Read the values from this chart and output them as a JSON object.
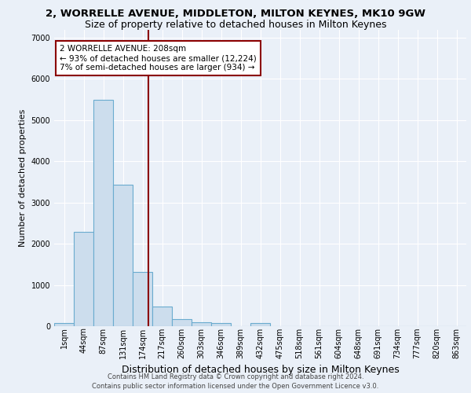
{
  "title": "2, WORRELLE AVENUE, MIDDLETON, MILTON KEYNES, MK10 9GW",
  "subtitle": "Size of property relative to detached houses in Milton Keynes",
  "xlabel": "Distribution of detached houses by size in Milton Keynes",
  "ylabel": "Number of detached properties",
  "bin_labels": [
    "1sqm",
    "44sqm",
    "87sqm",
    "131sqm",
    "174sqm",
    "217sqm",
    "260sqm",
    "303sqm",
    "346sqm",
    "389sqm",
    "432sqm",
    "475sqm",
    "518sqm",
    "561sqm",
    "604sqm",
    "648sqm",
    "691sqm",
    "734sqm",
    "777sqm",
    "820sqm",
    "863sqm"
  ],
  "bar_heights": [
    80,
    2280,
    5500,
    3440,
    1310,
    470,
    170,
    100,
    80,
    0,
    80,
    0,
    0,
    0,
    0,
    0,
    0,
    0,
    0,
    0,
    0
  ],
  "bar_color": "#ccdded",
  "bar_edgecolor": "#6aabcf",
  "bar_linewidth": 0.8,
  "vline_x": 4.79,
  "vline_color": "#8B0000",
  "vline_linewidth": 1.5,
  "annotation_text": "2 WORRELLE AVENUE: 208sqm\n← 93% of detached houses are smaller (12,224)\n7% of semi-detached houses are larger (934) →",
  "annotation_box_color": "white",
  "annotation_box_edgecolor": "#8B0000",
  "ylim": [
    0,
    7200
  ],
  "yticks": [
    0,
    1000,
    2000,
    3000,
    4000,
    5000,
    6000,
    7000
  ],
  "footer": "Contains HM Land Registry data © Crown copyright and database right 2024.\nContains public sector information licensed under the Open Government Licence v3.0.",
  "bg_color": "#eaf0f8",
  "grid_color": "white",
  "title_fontsize": 9.5,
  "subtitle_fontsize": 9,
  "xlabel_fontsize": 9,
  "ylabel_fontsize": 8,
  "tick_fontsize": 7,
  "annotation_fontsize": 7.5,
  "footer_fontsize": 6
}
